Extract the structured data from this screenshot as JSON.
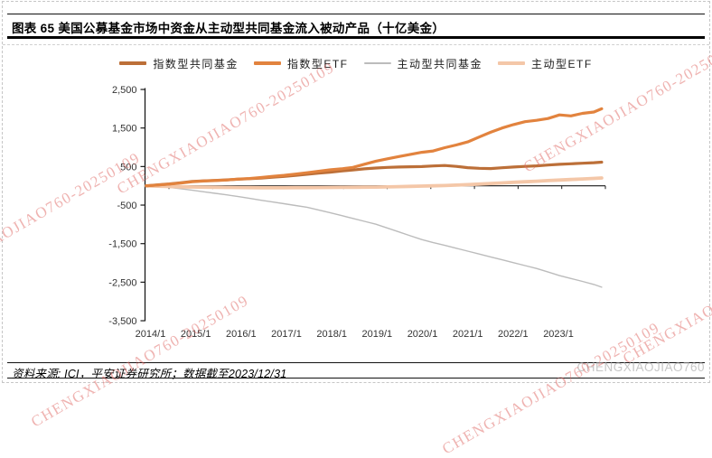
{
  "header": {
    "title": "图表 65  美国公募基金市场中资金从主动型共同基金流入被动产品（十亿美金）"
  },
  "footer": {
    "source": "资料来源: ICI，平安证券研究所；数据截至2023/12/31",
    "user_id": "CHENGXIAOJIAO760"
  },
  "watermark": {
    "text": "CHENGXIAOJIAO760-20250109",
    "color": "#df6763"
  },
  "chart_data": {
    "type": "line",
    "title": "美国公募基金市场中资金从主动型共同基金流入被动产品（十亿美金）",
    "xlabel": "",
    "ylabel": "",
    "ylim": [
      -3500,
      2500
    ],
    "grid": false,
    "legend_position": "top",
    "y_tick_values": [
      2500,
      1500,
      500,
      -500,
      -1500,
      -2500,
      -3500
    ],
    "y_tick_labels": [
      "2,500",
      "1,500",
      "500",
      "-500",
      "-1,500",
      "-2,500",
      "-3,500"
    ],
    "x_tick_labels": [
      "2014/1",
      "2015/1",
      "2016/1",
      "2017/1",
      "2018/1",
      "2019/1",
      "2020/1",
      "2021/1",
      "2022/1",
      "2023/1"
    ],
    "x_unit": "year (monthly cumulative flows)",
    "series": [
      {
        "name": "指数型共同基金",
        "color": "#bc6f38",
        "line_width": 3.2,
        "points": [
          [
            2014.0,
            0
          ],
          [
            2014.25,
            25
          ],
          [
            2014.5,
            50
          ],
          [
            2014.75,
            80
          ],
          [
            2015.0,
            115
          ],
          [
            2015.25,
            130
          ],
          [
            2015.5,
            140
          ],
          [
            2015.75,
            155
          ],
          [
            2016.0,
            172
          ],
          [
            2016.25,
            185
          ],
          [
            2016.5,
            200
          ],
          [
            2016.75,
            222
          ],
          [
            2017.0,
            243
          ],
          [
            2017.25,
            272
          ],
          [
            2017.5,
            300
          ],
          [
            2017.75,
            328
          ],
          [
            2018.0,
            353
          ],
          [
            2018.25,
            385
          ],
          [
            2018.5,
            410
          ],
          [
            2018.75,
            440
          ],
          [
            2019.0,
            462
          ],
          [
            2019.25,
            478
          ],
          [
            2019.5,
            487
          ],
          [
            2019.75,
            494
          ],
          [
            2020.0,
            500
          ],
          [
            2020.25,
            515
          ],
          [
            2020.5,
            528
          ],
          [
            2020.75,
            505
          ],
          [
            2021.0,
            472
          ],
          [
            2021.25,
            455
          ],
          [
            2021.5,
            448
          ],
          [
            2021.75,
            468
          ],
          [
            2022.0,
            488
          ],
          [
            2022.25,
            505
          ],
          [
            2022.5,
            518
          ],
          [
            2022.75,
            538
          ],
          [
            2023.0,
            557
          ],
          [
            2023.25,
            572
          ],
          [
            2023.5,
            585
          ],
          [
            2023.75,
            600
          ],
          [
            2023.92,
            615
          ]
        ]
      },
      {
        "name": "指数型ETF",
        "color": "#e2833e",
        "line_width": 3.2,
        "points": [
          [
            2014.0,
            0
          ],
          [
            2014.25,
            20
          ],
          [
            2014.5,
            45
          ],
          [
            2014.75,
            70
          ],
          [
            2015.0,
            105
          ],
          [
            2015.25,
            125
          ],
          [
            2015.5,
            135
          ],
          [
            2015.75,
            150
          ],
          [
            2016.0,
            175
          ],
          [
            2016.25,
            190
          ],
          [
            2016.5,
            215
          ],
          [
            2016.75,
            245
          ],
          [
            2017.0,
            272
          ],
          [
            2017.25,
            305
          ],
          [
            2017.5,
            340
          ],
          [
            2017.75,
            378
          ],
          [
            2018.0,
            415
          ],
          [
            2018.25,
            440
          ],
          [
            2018.5,
            478
          ],
          [
            2018.75,
            560
          ],
          [
            2019.0,
            640
          ],
          [
            2019.25,
            700
          ],
          [
            2019.5,
            760
          ],
          [
            2019.75,
            815
          ],
          [
            2020.0,
            870
          ],
          [
            2020.25,
            905
          ],
          [
            2020.5,
            990
          ],
          [
            2020.75,
            1060
          ],
          [
            2021.0,
            1140
          ],
          [
            2021.25,
            1265
          ],
          [
            2021.5,
            1390
          ],
          [
            2021.75,
            1500
          ],
          [
            2022.0,
            1590
          ],
          [
            2022.25,
            1665
          ],
          [
            2022.5,
            1700
          ],
          [
            2022.75,
            1745
          ],
          [
            2023.0,
            1840
          ],
          [
            2023.25,
            1815
          ],
          [
            2023.5,
            1880
          ],
          [
            2023.75,
            1915
          ],
          [
            2023.92,
            2000
          ]
        ]
      },
      {
        "name": "主动型共同基金",
        "color": "#bcbcbc",
        "line_width": 1.4,
        "points": [
          [
            2014.0,
            0
          ],
          [
            2014.25,
            -15
          ],
          [
            2014.5,
            -40
          ],
          [
            2014.75,
            -75
          ],
          [
            2015.0,
            -115
          ],
          [
            2015.25,
            -155
          ],
          [
            2015.5,
            -195
          ],
          [
            2015.75,
            -235
          ],
          [
            2016.0,
            -278
          ],
          [
            2016.25,
            -325
          ],
          [
            2016.5,
            -375
          ],
          [
            2016.75,
            -420
          ],
          [
            2017.0,
            -465
          ],
          [
            2017.25,
            -510
          ],
          [
            2017.5,
            -555
          ],
          [
            2017.75,
            -625
          ],
          [
            2018.0,
            -695
          ],
          [
            2018.25,
            -770
          ],
          [
            2018.5,
            -845
          ],
          [
            2018.75,
            -920
          ],
          [
            2019.0,
            -995
          ],
          [
            2019.25,
            -1095
          ],
          [
            2019.5,
            -1195
          ],
          [
            2019.75,
            -1295
          ],
          [
            2020.0,
            -1395
          ],
          [
            2020.25,
            -1475
          ],
          [
            2020.5,
            -1545
          ],
          [
            2020.75,
            -1620
          ],
          [
            2021.0,
            -1695
          ],
          [
            2021.25,
            -1770
          ],
          [
            2021.5,
            -1845
          ],
          [
            2021.75,
            -1920
          ],
          [
            2022.0,
            -1995
          ],
          [
            2022.25,
            -2070
          ],
          [
            2022.5,
            -2145
          ],
          [
            2022.75,
            -2235
          ],
          [
            2023.0,
            -2330
          ],
          [
            2023.25,
            -2405
          ],
          [
            2023.5,
            -2480
          ],
          [
            2023.75,
            -2560
          ],
          [
            2023.92,
            -2630
          ]
        ]
      },
      {
        "name": "主动型ETF",
        "color": "#f4c7a8",
        "line_width": 3.8,
        "points": [
          [
            2014.0,
            0
          ],
          [
            2014.25,
            -10
          ],
          [
            2014.5,
            -18
          ],
          [
            2014.75,
            -25
          ],
          [
            2015.0,
            -30
          ],
          [
            2015.25,
            -35
          ],
          [
            2015.5,
            -38
          ],
          [
            2015.75,
            -42
          ],
          [
            2016.0,
            -45
          ],
          [
            2016.25,
            -48
          ],
          [
            2016.5,
            -50
          ],
          [
            2016.75,
            -50
          ],
          [
            2017.0,
            -50
          ],
          [
            2017.25,
            -48
          ],
          [
            2017.5,
            -46
          ],
          [
            2017.75,
            -44
          ],
          [
            2018.0,
            -42
          ],
          [
            2018.25,
            -40
          ],
          [
            2018.5,
            -38
          ],
          [
            2018.75,
            -36
          ],
          [
            2019.0,
            -33
          ],
          [
            2019.25,
            -28
          ],
          [
            2019.5,
            -22
          ],
          [
            2019.75,
            -15
          ],
          [
            2020.0,
            -8
          ],
          [
            2020.25,
            0
          ],
          [
            2020.5,
            8
          ],
          [
            2020.75,
            18
          ],
          [
            2021.0,
            30
          ],
          [
            2021.25,
            45
          ],
          [
            2021.5,
            60
          ],
          [
            2021.75,
            76
          ],
          [
            2022.0,
            92
          ],
          [
            2022.25,
            106
          ],
          [
            2022.5,
            120
          ],
          [
            2022.75,
            135
          ],
          [
            2023.0,
            150
          ],
          [
            2023.25,
            165
          ],
          [
            2023.5,
            178
          ],
          [
            2023.75,
            192
          ],
          [
            2023.92,
            205
          ]
        ]
      }
    ]
  }
}
